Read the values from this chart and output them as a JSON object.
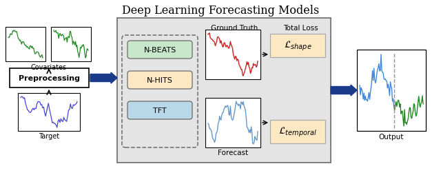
{
  "title": "Deep Learning Forecasting Models",
  "title_fontsize": 11.5,
  "bg_color": "#ffffff",
  "labels": {
    "covariates": "Covariates",
    "preprocessing": "Preprocessing",
    "target": "Target",
    "nbeats": "N-BEATS",
    "nhits": "N-HITS",
    "tft": "TFT",
    "ground_truth": "Ground Truth",
    "forecast": "Forecast",
    "total_loss": "Total Loss",
    "loss_shape": "$\\mathcal{L}_{shape}$",
    "loss_temporal": "$\\mathcal{L}_{temporal}$",
    "output": "Output"
  },
  "nbeats_color": "#c8e6c9",
  "nhits_color": "#fce8c3",
  "tft_color": "#b8d8ea",
  "loss_color": "#fce8c3",
  "main_bg": "#e4e4e4",
  "arrow_color": "#1a3a8a",
  "dashed_color": "#909090",
  "model_edge": "#6a6a6a",
  "main_edge": "#6a6a6a"
}
